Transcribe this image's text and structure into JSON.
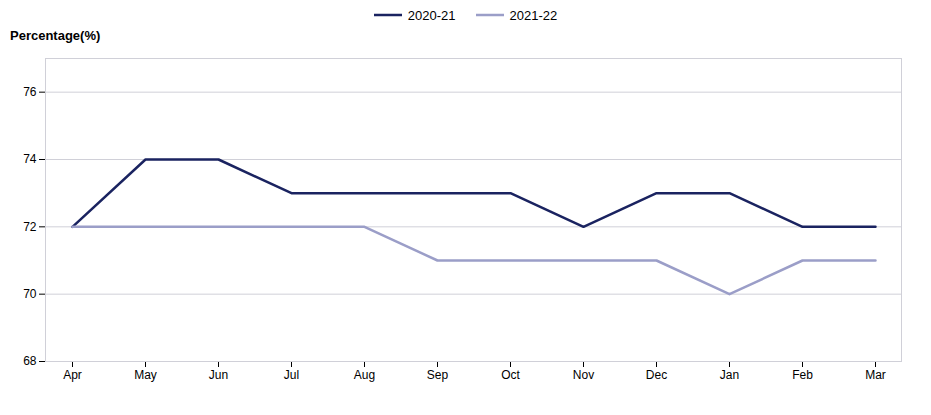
{
  "chart_data": {
    "type": "line",
    "ylabel": "Percentage(%)",
    "categories": [
      "Apr",
      "May",
      "Jun",
      "Jul",
      "Aug",
      "Sep",
      "Oct",
      "Nov",
      "Dec",
      "Jan",
      "Feb",
      "Mar"
    ],
    "series": [
      {
        "name": "2020-21",
        "color": "#1a2360",
        "values": [
          72,
          74,
          74,
          73,
          73,
          73,
          73,
          72,
          73,
          73,
          72,
          72
        ]
      },
      {
        "name": "2021-22",
        "color": "#9b9ec8",
        "values": [
          72,
          72,
          72,
          72,
          72,
          71,
          71,
          71,
          71,
          70,
          71,
          71
        ]
      }
    ],
    "ylim": [
      68,
      77
    ],
    "yticks": [
      68,
      70,
      72,
      74,
      76
    ],
    "grid": true,
    "legend": "top"
  }
}
